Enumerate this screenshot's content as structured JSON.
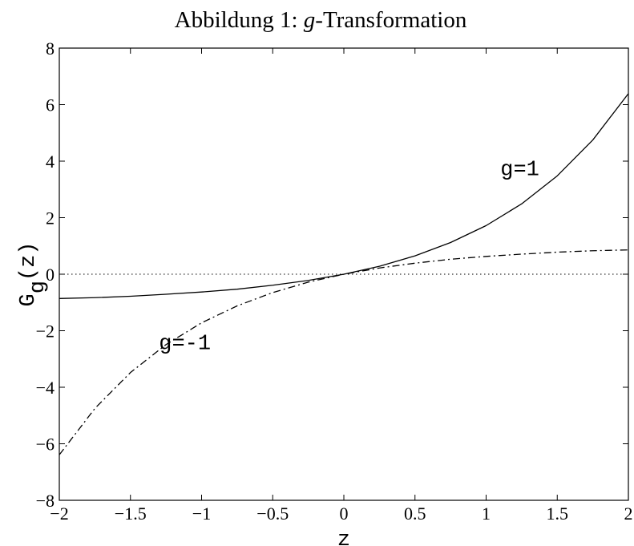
{
  "chart_data": {
    "type": "line",
    "title_prefix": "Abbildung 1: ",
    "title_var": "g",
    "title_suffix": "-Transformation",
    "xlabel": "z",
    "ylabel_main": "G",
    "ylabel_sub": "g",
    "ylabel_arg": "(z)",
    "xlim": [
      -2,
      2
    ],
    "ylim": [
      -8,
      8
    ],
    "xticks": [
      "-2",
      "-1.5",
      "-1",
      "-0.5",
      "0",
      "0.5",
      "1",
      "1.5",
      "2"
    ],
    "yticks": [
      "-8",
      "-6",
      "-4",
      "-2",
      "0",
      "2",
      "4",
      "6",
      "8"
    ],
    "reference_line": {
      "y": 0,
      "style": "dotted"
    },
    "series": [
      {
        "name": "g=1",
        "style": "solid",
        "x": [
          -2,
          -1.75,
          -1.5,
          -1.25,
          -1,
          -0.75,
          -0.5,
          -0.25,
          0,
          0.25,
          0.5,
          0.75,
          1,
          1.25,
          1.5,
          1.75,
          2
        ],
        "y": [
          -0.86,
          -0.83,
          -0.78,
          -0.71,
          -0.63,
          -0.53,
          -0.39,
          -0.22,
          0,
          0.28,
          0.65,
          1.12,
          1.72,
          2.49,
          3.48,
          4.75,
          6.39
        ]
      },
      {
        "name": "g=-1",
        "style": "dashdot",
        "x": [
          -2,
          -1.75,
          -1.5,
          -1.25,
          -1,
          -0.75,
          -0.5,
          -0.25,
          0,
          0.25,
          0.5,
          0.75,
          1,
          1.25,
          1.5,
          1.75,
          2
        ],
        "y": [
          -6.39,
          -4.75,
          -3.48,
          -2.49,
          -1.72,
          -1.12,
          -0.65,
          -0.28,
          0,
          0.22,
          0.39,
          0.53,
          0.63,
          0.71,
          0.78,
          0.83,
          0.86
        ]
      }
    ],
    "annotations": [
      {
        "text": "g=1",
        "x": 1.1,
        "y": 3.5
      },
      {
        "text": "g=-1",
        "x": -1.3,
        "y": -2.65
      }
    ]
  }
}
